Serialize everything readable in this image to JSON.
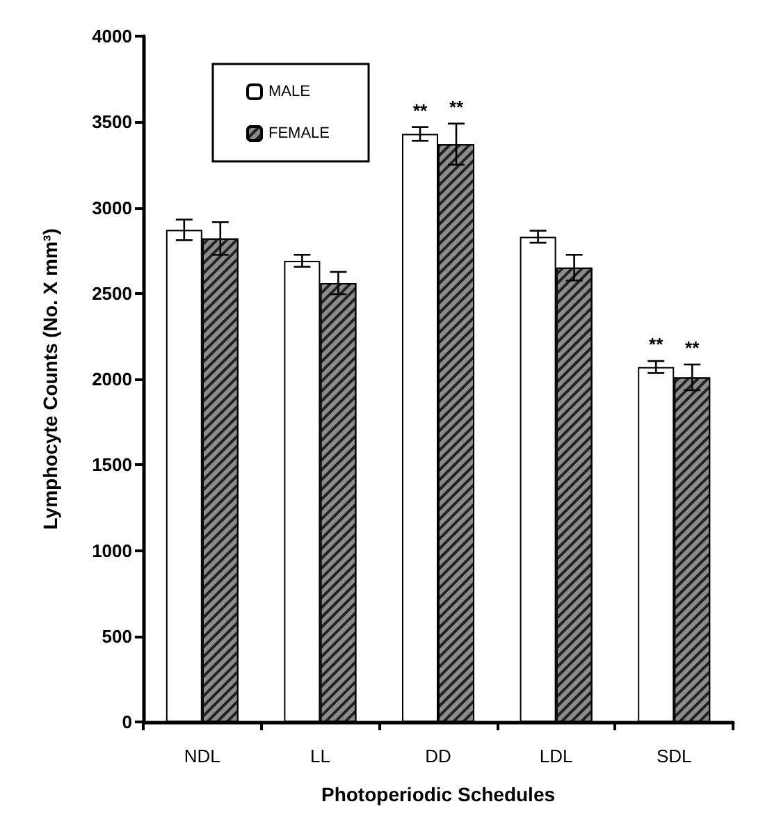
{
  "chart_data": {
    "type": "bar",
    "xlabel": "Photoperiodic Schedules",
    "ylabel": "Lymphocyte Counts (No. X mm³)",
    "categories": [
      "NDL",
      "LL",
      "DD",
      "LDL",
      "SDL"
    ],
    "series": [
      {
        "name": "MALE",
        "color": "#ffffff",
        "values": [
          2870,
          2690,
          3430,
          2830,
          2070
        ],
        "errors": [
          60,
          35,
          40,
          35,
          35
        ]
      },
      {
        "name": "FEMALE",
        "color": "#8c8c8c",
        "values": [
          2820,
          2560,
          3370,
          2650,
          2010
        ],
        "errors": [
          95,
          65,
          120,
          75,
          75
        ]
      }
    ],
    "ylim": [
      0,
      4000
    ],
    "yticks": [
      0,
      500,
      1000,
      1500,
      2000,
      2500,
      3000,
      3500,
      4000
    ],
    "grid": false,
    "legend": "top left",
    "annotations": [
      {
        "text": "**",
        "x": "DD",
        "y": 3430
      },
      {
        "text": "**",
        "x": "DD",
        "y": 3370
      },
      {
        "text": "**",
        "x": "SDL",
        "y": 2070
      },
      {
        "text": "**",
        "x": "SDL",
        "y": 2010
      }
    ]
  }
}
